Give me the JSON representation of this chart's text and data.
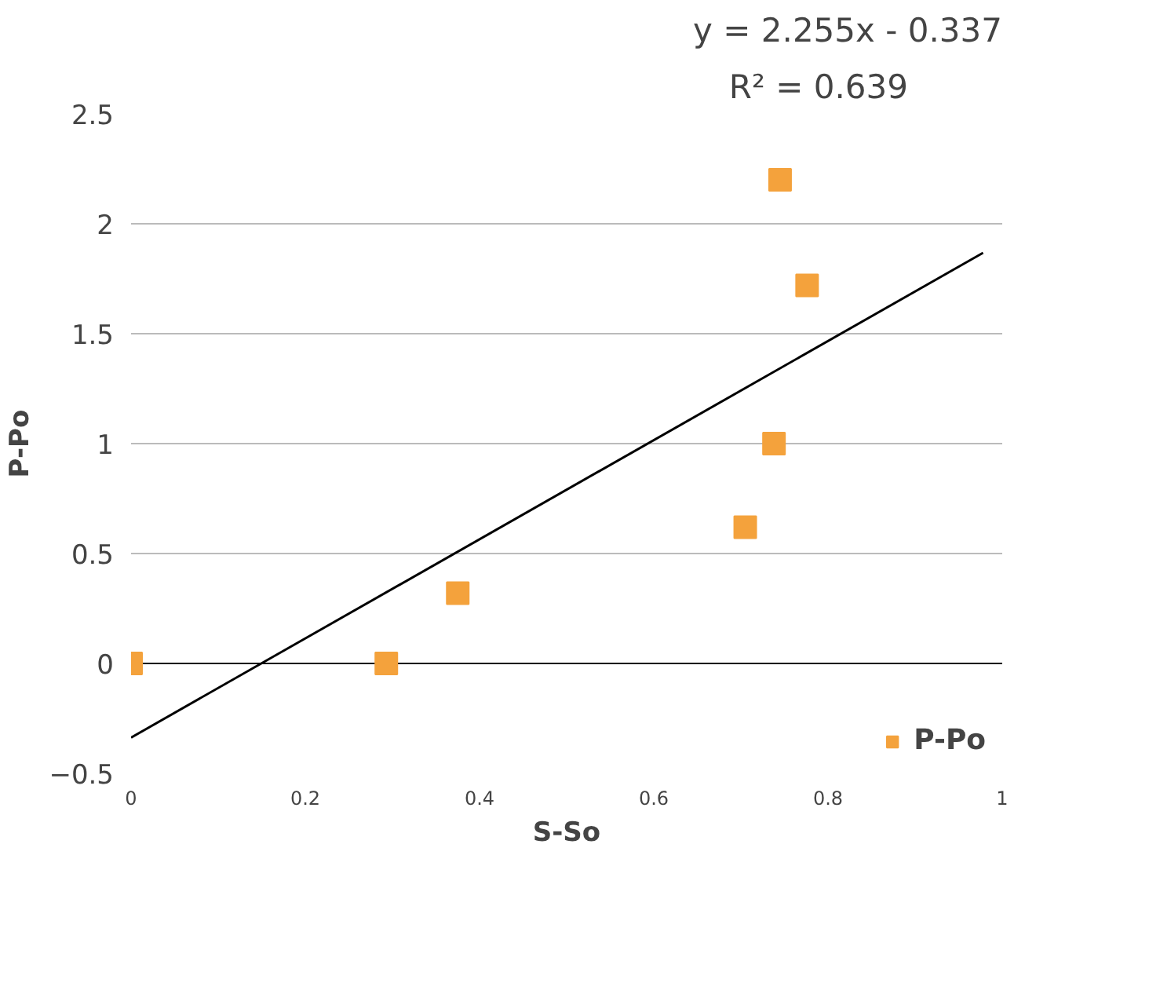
{
  "chart_data": {
    "type": "scatter",
    "xlabel": "S-So",
    "ylabel": "P-Po",
    "annotations": [
      "y = 2.255x - 0.337",
      "R² = 0.639"
    ],
    "xlim": [
      0,
      1
    ],
    "ylim": [
      -0.5,
      2.5
    ],
    "xticks": [
      0,
      0.2,
      0.4,
      0.6,
      0.8,
      1
    ],
    "yticks": [
      -0.5,
      0,
      0.5,
      1,
      1.5,
      2,
      2.5
    ],
    "grid": "y",
    "legend": "bottom right",
    "series": [
      {
        "name": "P-Po",
        "color": "#f4a23c",
        "marker": "square",
        "x": [
          0,
          0.293,
          0.375,
          0.705,
          0.738,
          0.745,
          0.776
        ],
        "values": [
          0,
          0.0,
          0.32,
          0.62,
          1.0,
          2.2,
          1.72
        ]
      },
      {
        "type": "line",
        "color": "#000000",
        "x": [
          0,
          0.978
        ],
        "values": [
          -0.337,
          1.868
        ]
      }
    ]
  }
}
